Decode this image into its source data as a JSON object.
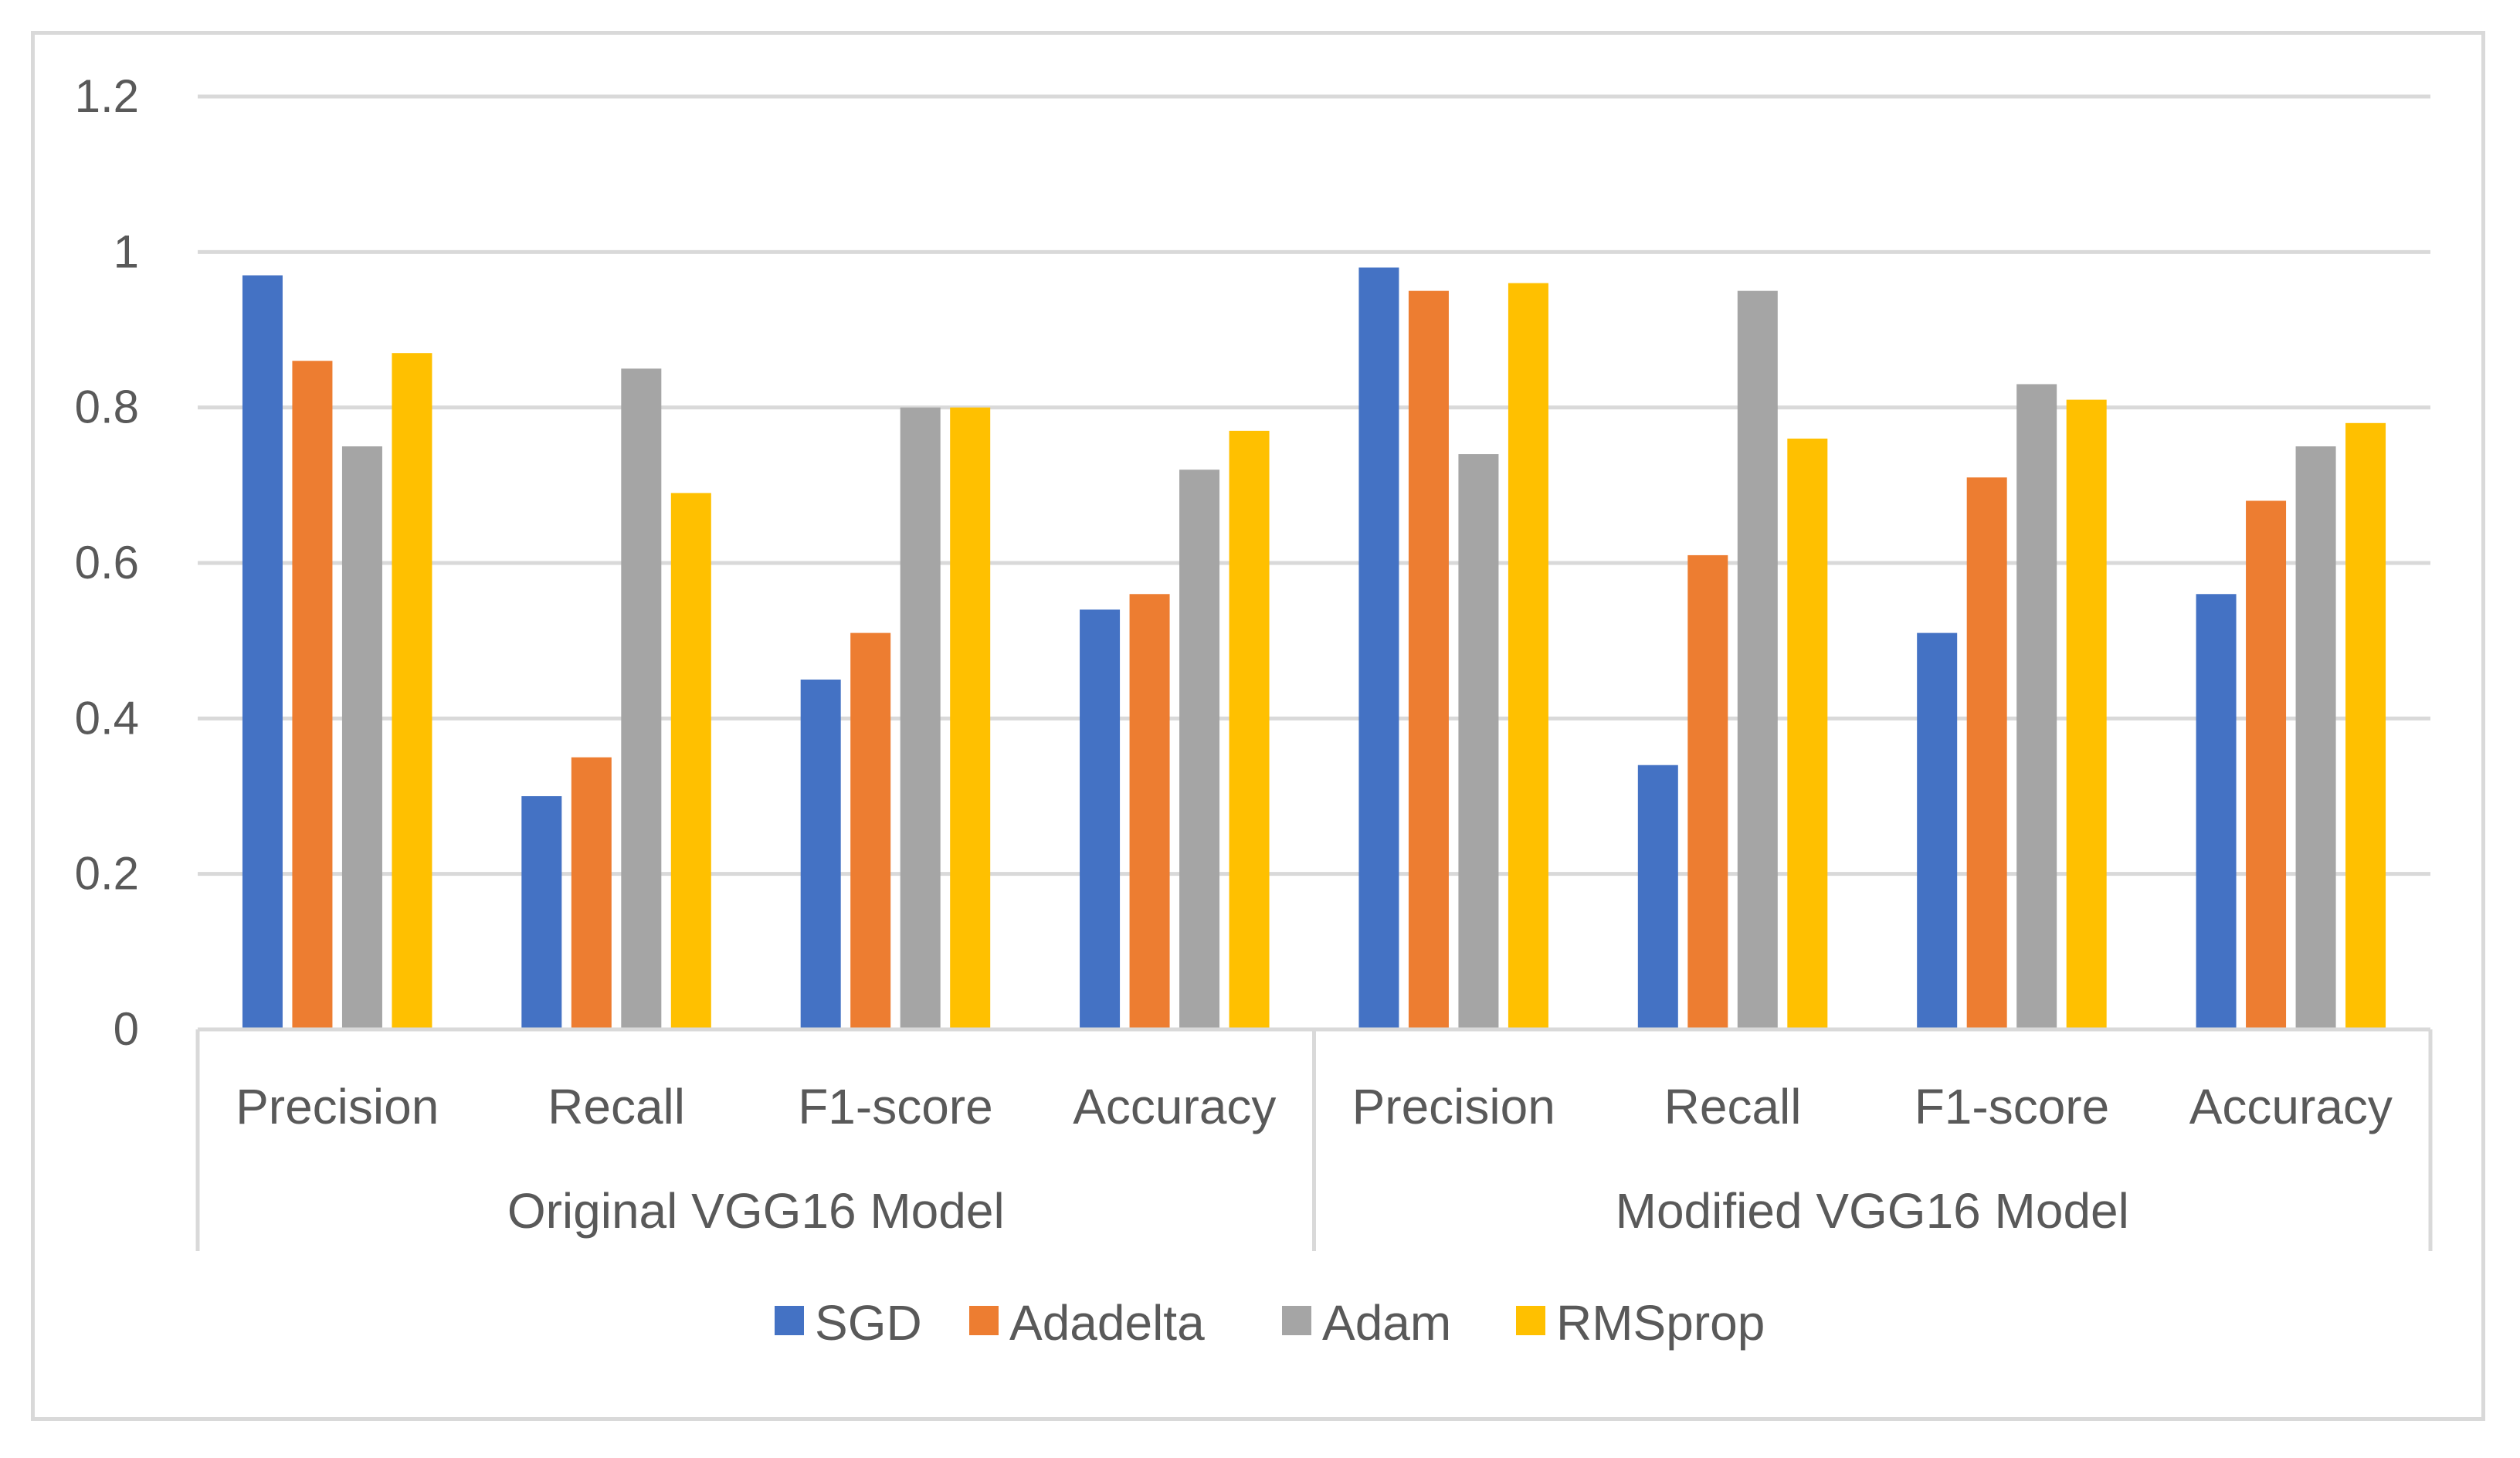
{
  "chart_data": {
    "type": "bar",
    "title": "",
    "xlabel": "",
    "ylabel": "",
    "ylim": [
      0,
      1.2
    ],
    "yticks": [
      "0",
      "0.2",
      "0.4",
      "0.6",
      "0.8",
      "1",
      "1.2"
    ],
    "ytick_values": [
      0,
      0.2,
      0.4,
      0.6,
      0.8,
      1,
      1.2
    ],
    "grid": true,
    "legend_position": "bottom",
    "groups": [
      {
        "label": "Original VGG16 Model",
        "categories": [
          "Precision",
          "Recall",
          "F1-score",
          "Accuracy"
        ]
      },
      {
        "label": "Modified VGG16 Model",
        "categories": [
          "Precision",
          "Recall",
          "F1-score",
          "Accuracy"
        ]
      }
    ],
    "series": [
      {
        "name": "SGD",
        "color": "#4472c4",
        "values": [
          0.97,
          0.3,
          0.45,
          0.54,
          0.98,
          0.34,
          0.51,
          0.56
        ]
      },
      {
        "name": "Adadelta",
        "color": "#ed7d31",
        "values": [
          0.86,
          0.35,
          0.51,
          0.56,
          0.95,
          0.61,
          0.71,
          0.68
        ]
      },
      {
        "name": "Adam",
        "color": "#a5a5a5",
        "values": [
          0.75,
          0.85,
          0.8,
          0.72,
          0.74,
          0.95,
          0.83,
          0.75
        ]
      },
      {
        "name": "RMSprop",
        "color": "#ffc000",
        "values": [
          0.87,
          0.69,
          0.8,
          0.77,
          0.96,
          0.76,
          0.81,
          0.78
        ]
      }
    ]
  }
}
